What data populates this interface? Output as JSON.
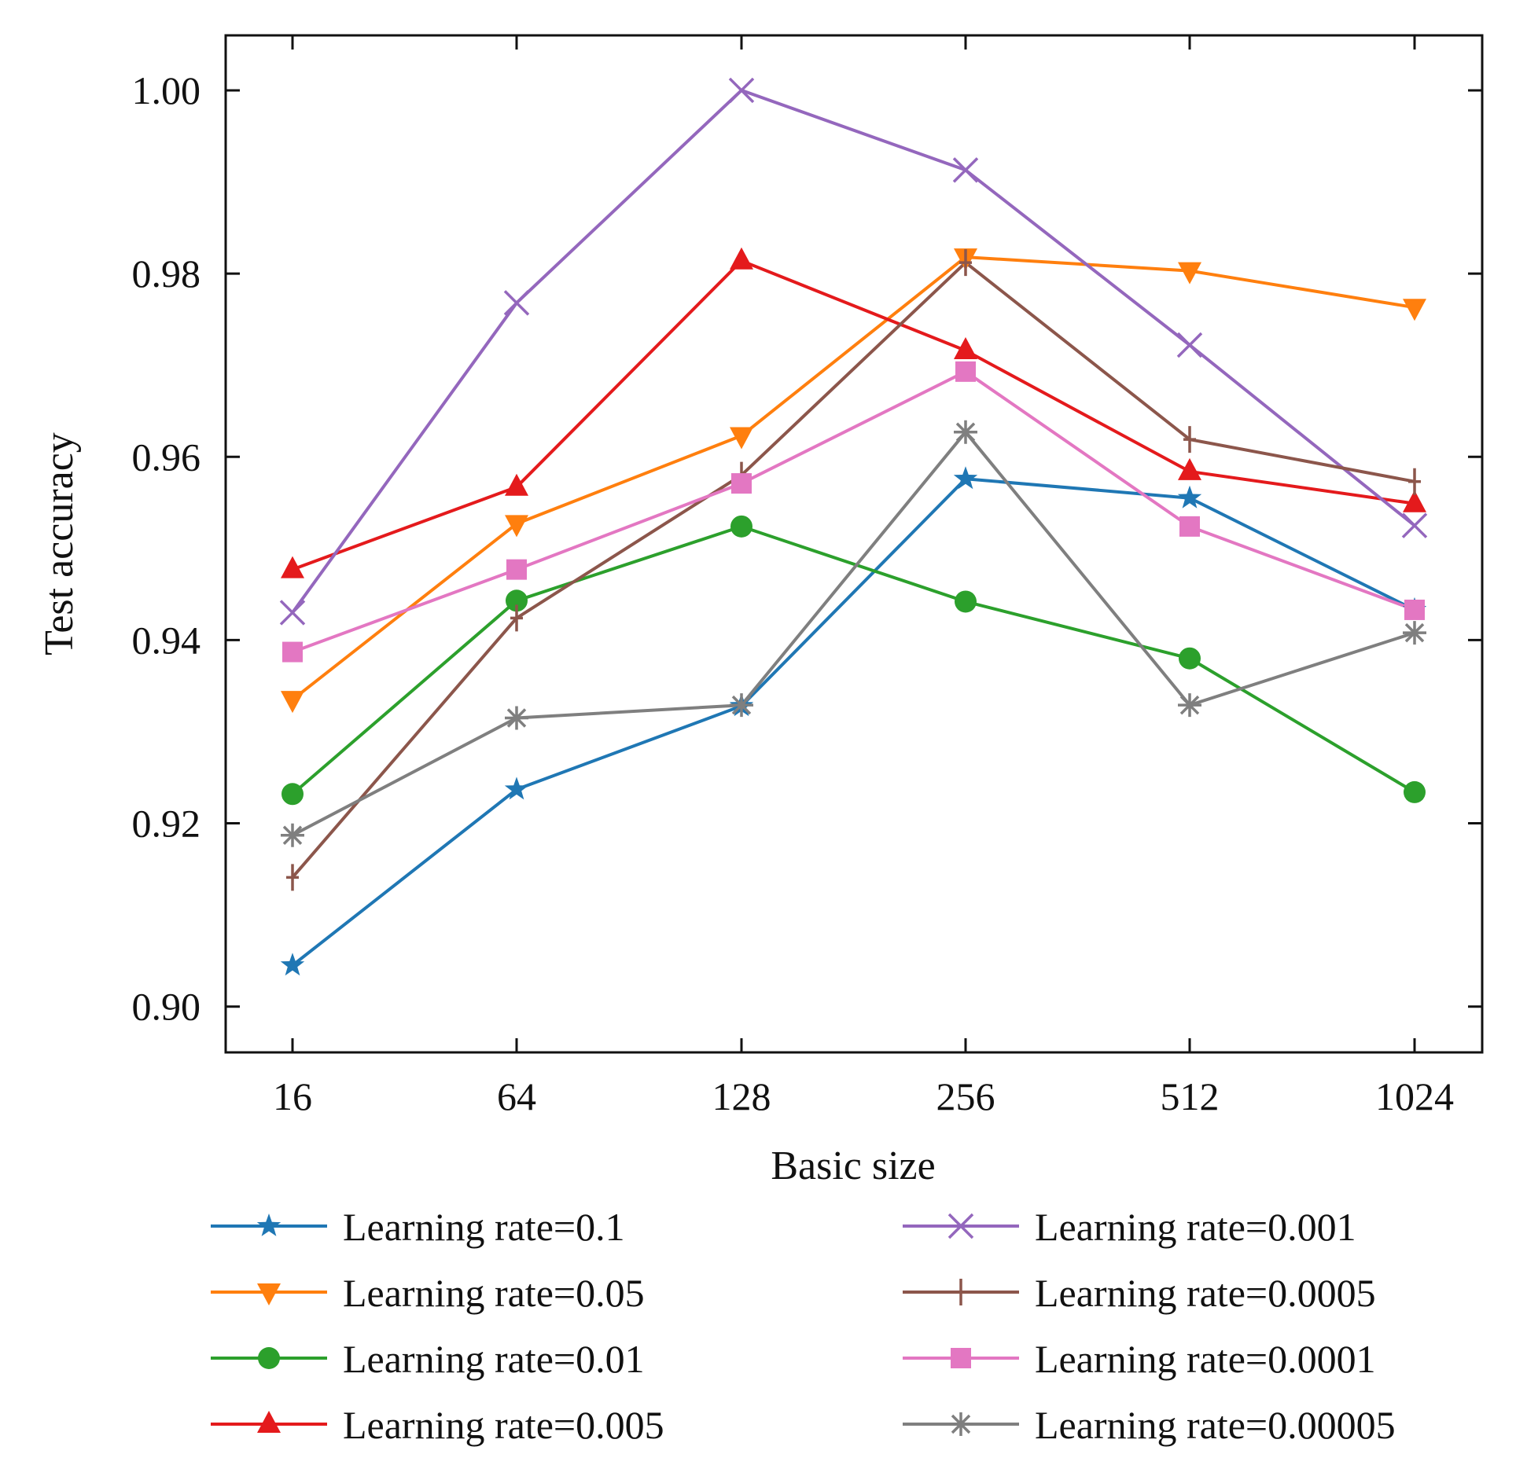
{
  "chart_data": {
    "type": "line",
    "title": "",
    "xlabel": "Basic size",
    "ylabel": "Test accuracy",
    "categories": [
      "16",
      "64",
      "128",
      "256",
      "512",
      "1024"
    ],
    "ylim": [
      0.895,
      1.006
    ],
    "yticks": [
      0.9,
      0.92,
      0.94,
      0.96,
      0.98,
      1.0
    ],
    "ytick_labels": [
      "0.90",
      "0.92",
      "0.94",
      "0.96",
      "0.98",
      "1.00"
    ],
    "grid": false,
    "legend_position": "bottom",
    "series": [
      {
        "name": "Learning rate=0.1",
        "color": "#1f77b4",
        "marker": "star",
        "values": [
          0.9045,
          0.9237,
          0.9328,
          0.9576,
          0.9555,
          0.9433
        ]
      },
      {
        "name": "Learning rate=0.05",
        "color": "#ff7f0e",
        "marker": "triangle-down",
        "values": [
          0.9335,
          0.9527,
          0.9623,
          0.9818,
          0.9803,
          0.9763
        ]
      },
      {
        "name": "Learning rate=0.01",
        "color": "#2ca02c",
        "marker": "circle",
        "values": [
          0.9232,
          0.9443,
          0.9524,
          0.9442,
          0.938,
          0.9234
        ]
      },
      {
        "name": "Learning rate=0.005",
        "color": "#e41a1c",
        "marker": "triangle-up",
        "values": [
          0.9477,
          0.9567,
          0.9814,
          0.9716,
          0.9584,
          0.9549
        ]
      },
      {
        "name": "Learning rate=0.001",
        "color": "#9467bd",
        "marker": "x",
        "values": [
          0.943,
          0.9768,
          1.0,
          0.9913,
          0.9722,
          0.9525
        ]
      },
      {
        "name": "Learning rate=0.0005",
        "color": "#8c564b",
        "marker": "plus",
        "values": [
          0.9141,
          0.9424,
          0.958,
          0.9812,
          0.9619,
          0.9573
        ]
      },
      {
        "name": "Learning rate=0.0001",
        "color": "#e377c2",
        "marker": "square",
        "values": [
          0.9387,
          0.9477,
          0.9571,
          0.9693,
          0.9524,
          0.9433
        ]
      },
      {
        "name": "Learning rate=0.00005",
        "color": "#7f7f7f",
        "marker": "asterisk",
        "values": [
          0.9187,
          0.9315,
          0.9329,
          0.9627,
          0.9329,
          0.9408
        ]
      }
    ]
  }
}
